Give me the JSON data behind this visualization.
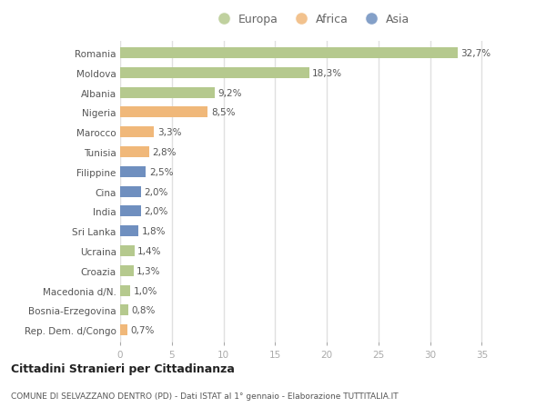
{
  "countries": [
    "Romania",
    "Moldova",
    "Albania",
    "Nigeria",
    "Marocco",
    "Tunisia",
    "Filippine",
    "Cina",
    "India",
    "Sri Lanka",
    "Ucraina",
    "Croazia",
    "Macedonia d/N.",
    "Bosnia-Erzegovina",
    "Rep. Dem. d/Congo"
  ],
  "values": [
    32.7,
    18.3,
    9.2,
    8.5,
    3.3,
    2.8,
    2.5,
    2.0,
    2.0,
    1.8,
    1.4,
    1.3,
    1.0,
    0.8,
    0.7
  ],
  "labels": [
    "32,7%",
    "18,3%",
    "9,2%",
    "8,5%",
    "3,3%",
    "2,8%",
    "2,5%",
    "2,0%",
    "2,0%",
    "1,8%",
    "1,4%",
    "1,3%",
    "1,0%",
    "0,8%",
    "0,7%"
  ],
  "continents": [
    "Europa",
    "Europa",
    "Europa",
    "Africa",
    "Africa",
    "Africa",
    "Asia",
    "Asia",
    "Asia",
    "Asia",
    "Europa",
    "Europa",
    "Europa",
    "Europa",
    "Africa"
  ],
  "colors": {
    "Europa": "#b5c98e",
    "Africa": "#f0b87a",
    "Asia": "#6f8fbf"
  },
  "legend_labels": [
    "Europa",
    "Africa",
    "Asia"
  ],
  "legend_colors": [
    "#b5c98e",
    "#f0b87a",
    "#6f8fbf"
  ],
  "title": "Cittadini Stranieri per Cittadinanza",
  "subtitle": "COMUNE DI SELVAZZANO DENTRO (PD) - Dati ISTAT al 1° gennaio - Elaborazione TUTTITALIA.IT",
  "xlim": [
    0,
    37
  ],
  "xticks": [
    0,
    5,
    10,
    15,
    20,
    25,
    30,
    35
  ],
  "bg_color": "#ffffff",
  "plot_bg_color": "#ffffff",
  "grid_color": "#e0e0e0",
  "label_fontsize": 7.5,
  "tick_fontsize": 7.5,
  "bar_height": 0.55
}
